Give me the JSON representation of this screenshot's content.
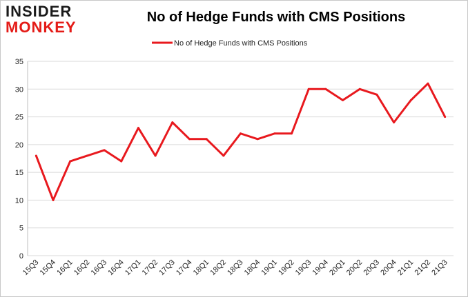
{
  "logo": {
    "top": "INSIDER",
    "bottom": "MONKEY"
  },
  "chart_data": {
    "type": "line",
    "title": "No of Hedge Funds with CMS Positions",
    "xlabel": "",
    "ylabel": "",
    "ylim": [
      0,
      35
    ],
    "yticks": [
      0,
      5,
      10,
      15,
      20,
      25,
      30,
      35
    ],
    "grid": true,
    "legend_position": "top-center",
    "color": "#e8191e",
    "categories": [
      "15Q3",
      "15Q4",
      "16Q1",
      "16Q2",
      "16Q3",
      "16Q4",
      "17Q1",
      "17Q2",
      "17Q3",
      "17Q4",
      "18Q1",
      "18Q2",
      "18Q3",
      "18Q4",
      "19Q1",
      "19Q2",
      "19Q3",
      "19Q4",
      "20Q1",
      "20Q2",
      "20Q3",
      "20Q4",
      "21Q1",
      "21Q2",
      "21Q3"
    ],
    "series": [
      {
        "name": "No of Hedge Funds with CMS Positions",
        "values": [
          18,
          10,
          17,
          18,
          19,
          17,
          23,
          18,
          24,
          21,
          21,
          18,
          22,
          21,
          22,
          22,
          30,
          30,
          28,
          30,
          29,
          24,
          28,
          31,
          25
        ]
      }
    ]
  }
}
